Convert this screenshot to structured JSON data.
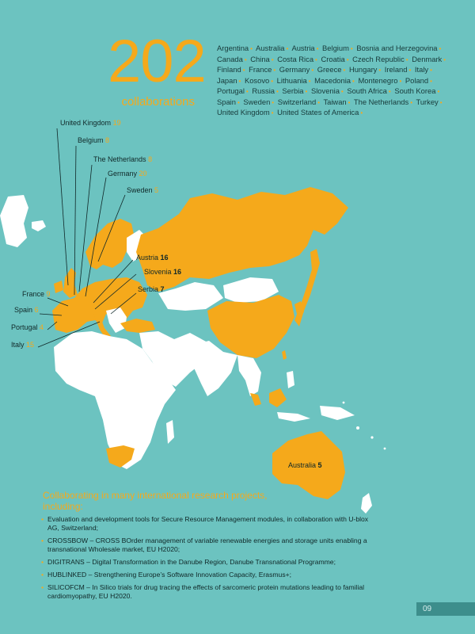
{
  "headline": {
    "number": "202",
    "label": "collaborations"
  },
  "countries": [
    "Argentina",
    "Australia",
    "Austria",
    "Belgium",
    "Bosnia and Herzegovina",
    "Canada",
    "China",
    "Costa Rica",
    "Croatia",
    "Czech Republic",
    "Denmark",
    "Finland",
    "France",
    "Germany",
    "Greece",
    "Hungary",
    "Ireland",
    "Italy",
    "Japan",
    "Kosovo",
    "Lithuania",
    "Macedonia",
    "Montenegro",
    "Poland",
    "Portugal",
    "Russia",
    "Serbia",
    "Slovenia",
    "South Africa",
    "South Korea",
    "Spain",
    "Sweden",
    "Switzerland",
    "Taiwan",
    "The Netherlands",
    "Turkey",
    "United Kingdom",
    "United States of America"
  ],
  "map_labels": [
    {
      "name": "United Kingdom",
      "value": "19",
      "style": "light"
    },
    {
      "name": "Belgium",
      "value": "8",
      "style": "light"
    },
    {
      "name": "The Netherlands",
      "value": "8",
      "style": "light"
    },
    {
      "name": "Germany",
      "value": "20",
      "style": "light"
    },
    {
      "name": "Sweden",
      "value": "5",
      "style": "light"
    },
    {
      "name": "Austria",
      "value": "16",
      "style": "dark"
    },
    {
      "name": "Slovenia",
      "value": "16",
      "style": "dark"
    },
    {
      "name": "Serbia",
      "value": "7",
      "style": "dark"
    },
    {
      "name": "France",
      "value": "9",
      "style": "light"
    },
    {
      "name": "Spain",
      "value": "6",
      "style": "light"
    },
    {
      "name": "Portugal",
      "value": "4",
      "style": "light"
    },
    {
      "name": "Italy",
      "value": "15",
      "style": "light"
    },
    {
      "name": "Australia",
      "value": "5",
      "style": "dark"
    }
  ],
  "projects": {
    "title": "Collaborating in many international research projects, including:",
    "items": [
      "Evaluation and development tools for Secure Resource Management modules, in collaboration with U-blox AG, Switzerland;",
      "CROSSBOW – CROSS BOrder management of variable renewable energies and storage units enabling a transnational Wholesale market, EU H2020;",
      "DIGITRANS – Digital Transformation in the Danube Region, Danube Transnational Programme;",
      "HUBLINKED – Strengthening Europe’s Software Innovation Capacity, Erasmus+;",
      "SILICOFCM – In Silico trials for drug tracing the effects of sarcomeric protein mutations leading to familial cardiomyopathy, EU H2020."
    ]
  },
  "page_number": "09",
  "colors": {
    "background": "#6cc3c0",
    "accent": "#f5a91b",
    "land": "#ffffff",
    "text": "#102828"
  }
}
